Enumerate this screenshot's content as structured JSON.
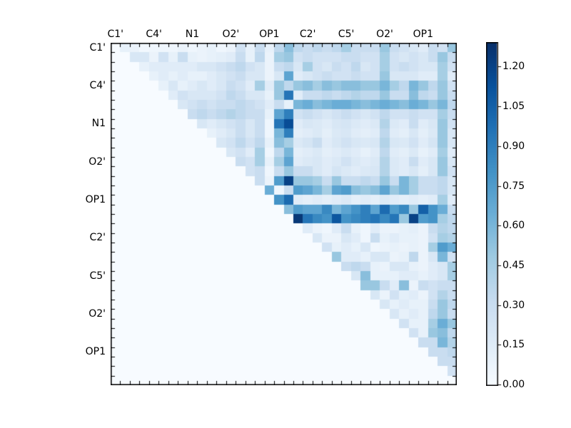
{
  "chart_data": {
    "type": "heatmap",
    "title": "",
    "x_tick_labels": [
      "C1'",
      "C4'",
      "N1",
      "O2'",
      "OP1",
      "C2'",
      "C5'",
      "O2'",
      "OP1"
    ],
    "y_tick_labels": [
      "C1'",
      "C4'",
      "N1",
      "O2'",
      "OP1",
      "C2'",
      "C5'",
      "O2'",
      "OP1"
    ],
    "label_every": 4,
    "grid_size": 36,
    "triangle": "upper",
    "vmin": 0.0,
    "vmax": 1.29,
    "colorbar_ticks": [
      "0.00",
      "0.15",
      "0.30",
      "0.45",
      "0.60",
      "0.75",
      "0.90",
      "1.05",
      "1.20"
    ],
    "colorbar_tick_values": [
      0.0,
      0.15,
      0.3,
      0.45,
      0.6,
      0.75,
      0.9,
      1.05,
      1.2
    ],
    "colormap": {
      "name": "Blues",
      "anchors": [
        "#f7fbff",
        "#deebf7",
        "#c6dbef",
        "#9ecae1",
        "#6baed6",
        "#4292c6",
        "#2171b5",
        "#08519c",
        "#08306b"
      ]
    },
    "frame_color": "#000000",
    "background_color": "#ffffff",
    "matrix": [
      [
        0,
        0.1,
        0.08,
        0.03,
        0.05,
        0.05,
        0.05,
        0.08,
        0.05,
        0.08,
        0.1,
        0.05,
        0.08,
        0.25,
        0.1,
        0.3,
        0.1,
        0.35,
        0.55,
        0.35,
        0.3,
        0.35,
        0.3,
        0.35,
        0.45,
        0.3,
        0.3,
        0.3,
        0.5,
        0.3,
        0.25,
        0.2,
        0.15,
        0.3,
        0.25,
        0.5
      ],
      [
        0,
        0,
        0.2,
        0.2,
        0.08,
        0.25,
        0.1,
        0.3,
        0.1,
        0.08,
        0.1,
        0.12,
        0.15,
        0.3,
        0.1,
        0.35,
        0.08,
        0.45,
        0.5,
        0.25,
        0.3,
        0.25,
        0.25,
        0.25,
        0.3,
        0.3,
        0.25,
        0.25,
        0.45,
        0.25,
        0.2,
        0.25,
        0.2,
        0.3,
        0.5,
        0.3
      ],
      [
        0,
        0,
        0,
        0.1,
        0.15,
        0.15,
        0.15,
        0.15,
        0.15,
        0.2,
        0.2,
        0.25,
        0.3,
        0.35,
        0.25,
        0.2,
        0.08,
        0.3,
        0.35,
        0.2,
        0.45,
        0.25,
        0.2,
        0.3,
        0.25,
        0.35,
        0.2,
        0.25,
        0.45,
        0.25,
        0.3,
        0.25,
        0.2,
        0.2,
        0.45,
        0.25
      ],
      [
        0,
        0,
        0,
        0,
        0.1,
        0.15,
        0.1,
        0.15,
        0.1,
        0.1,
        0.15,
        0.2,
        0.25,
        0.3,
        0.2,
        0.2,
        0.08,
        0.2,
        0.7,
        0.15,
        0.2,
        0.25,
        0.3,
        0.25,
        0.25,
        0.3,
        0.25,
        0.25,
        0.5,
        0.2,
        0.2,
        0.2,
        0.15,
        0.15,
        0.45,
        0.15
      ],
      [
        0,
        0,
        0,
        0,
        0,
        0.1,
        0.2,
        0.1,
        0.15,
        0.2,
        0.15,
        0.2,
        0.3,
        0.25,
        0.15,
        0.45,
        0.15,
        0.5,
        0.35,
        0.5,
        0.55,
        0.45,
        0.55,
        0.5,
        0.55,
        0.55,
        0.5,
        0.5,
        0.6,
        0.45,
        0.35,
        0.6,
        0.5,
        0.35,
        0.5,
        0.25
      ],
      [
        0,
        0,
        0,
        0,
        0,
        0,
        0.15,
        0.25,
        0.2,
        0.2,
        0.2,
        0.25,
        0.35,
        0.3,
        0.2,
        0.2,
        0.1,
        0.5,
        0.95,
        0.15,
        0.3,
        0.3,
        0.35,
        0.3,
        0.35,
        0.4,
        0.35,
        0.35,
        0.5,
        0.3,
        0.3,
        0.55,
        0.35,
        0.3,
        0.5,
        0.3
      ],
      [
        0,
        0,
        0,
        0,
        0,
        0,
        0,
        0.2,
        0.25,
        0.3,
        0.25,
        0.3,
        0.3,
        0.35,
        0.3,
        0.25,
        0.15,
        0.3,
        0.1,
        0.6,
        0.65,
        0.55,
        0.6,
        0.65,
        0.65,
        0.6,
        0.55,
        0.6,
        0.65,
        0.6,
        0.55,
        0.65,
        0.6,
        0.5,
        0.6,
        0.35
      ],
      [
        0,
        0,
        0,
        0,
        0,
        0,
        0,
        0,
        0.3,
        0.35,
        0.3,
        0.35,
        0.4,
        0.35,
        0.3,
        0.3,
        0.1,
        0.7,
        0.9,
        0.25,
        0.3,
        0.25,
        0.2,
        0.25,
        0.3,
        0.25,
        0.2,
        0.25,
        0.35,
        0.25,
        0.25,
        0.3,
        0.25,
        0.25,
        0.45,
        0.3
      ],
      [
        0,
        0,
        0,
        0,
        0,
        0,
        0,
        0,
        0,
        0.2,
        0.15,
        0.2,
        0.25,
        0.3,
        0.2,
        0.3,
        0.05,
        0.95,
        1.15,
        0.15,
        0.2,
        0.18,
        0.15,
        0.2,
        0.22,
        0.18,
        0.15,
        0.18,
        0.4,
        0.18,
        0.15,
        0.3,
        0.15,
        0.2,
        0.5,
        0.25
      ],
      [
        0,
        0,
        0,
        0,
        0,
        0,
        0,
        0,
        0,
        0,
        0.1,
        0.15,
        0.2,
        0.3,
        0.2,
        0.3,
        0.05,
        0.6,
        0.9,
        0.12,
        0.15,
        0.18,
        0.12,
        0.18,
        0.2,
        0.15,
        0.12,
        0.15,
        0.35,
        0.15,
        0.12,
        0.2,
        0.12,
        0.18,
        0.5,
        0.2
      ],
      [
        0,
        0,
        0,
        0,
        0,
        0,
        0,
        0,
        0,
        0,
        0,
        0.2,
        0.25,
        0.35,
        0.25,
        0.35,
        0.1,
        0.55,
        0.45,
        0.18,
        0.22,
        0.3,
        0.15,
        0.2,
        0.25,
        0.2,
        0.18,
        0.2,
        0.4,
        0.2,
        0.18,
        0.25,
        0.15,
        0.22,
        0.5,
        0.2
      ],
      [
        0,
        0,
        0,
        0,
        0,
        0,
        0,
        0,
        0,
        0,
        0,
        0,
        0.2,
        0.25,
        0.15,
        0.45,
        0.05,
        0.35,
        0.6,
        0.12,
        0.15,
        0.18,
        0.12,
        0.15,
        0.18,
        0.15,
        0.1,
        0.15,
        0.35,
        0.15,
        0.12,
        0.18,
        0.1,
        0.15,
        0.45,
        0.15
      ],
      [
        0,
        0,
        0,
        0,
        0,
        0,
        0,
        0,
        0,
        0,
        0,
        0,
        0,
        0.3,
        0.25,
        0.45,
        0.1,
        0.45,
        0.7,
        0.15,
        0.18,
        0.2,
        0.15,
        0.18,
        0.25,
        0.18,
        0.15,
        0.18,
        0.4,
        0.18,
        0.15,
        0.3,
        0.15,
        0.2,
        0.5,
        0.2
      ],
      [
        0,
        0,
        0,
        0,
        0,
        0,
        0,
        0,
        0,
        0,
        0,
        0,
        0,
        0,
        0.25,
        0.3,
        0.05,
        0.3,
        0.5,
        0.3,
        0.3,
        0.2,
        0.15,
        0.22,
        0.18,
        0.15,
        0.18,
        0.2,
        0.4,
        0.18,
        0.15,
        0.2,
        0.12,
        0.2,
        0.5,
        0.25
      ],
      [
        0,
        0,
        0,
        0,
        0,
        0,
        0,
        0,
        0,
        0,
        0,
        0,
        0,
        0,
        0,
        0.3,
        0.08,
        0.75,
        1.2,
        0.5,
        0.5,
        0.45,
        0.3,
        0.5,
        0.3,
        0.3,
        0.35,
        0.3,
        0.5,
        0.3,
        0.6,
        0.45,
        0.3,
        0.3,
        0.35,
        0.2
      ],
      [
        0,
        0,
        0,
        0,
        0,
        0,
        0,
        0,
        0,
        0,
        0,
        0,
        0,
        0,
        0,
        0,
        0.65,
        0.05,
        0.3,
        0.75,
        0.7,
        0.6,
        0.45,
        0.7,
        0.75,
        0.55,
        0.5,
        0.55,
        0.7,
        0.5,
        0.6,
        0.45,
        0.3,
        0.3,
        0.35,
        0.2
      ],
      [
        0,
        0,
        0,
        0,
        0,
        0,
        0,
        0,
        0,
        0,
        0,
        0,
        0,
        0,
        0,
        0,
        0,
        0.8,
        1.0,
        0.15,
        0.12,
        0.15,
        0.12,
        0.15,
        0.18,
        0.12,
        0.15,
        0.12,
        0.18,
        0.15,
        0.12,
        0.15,
        0.12,
        0.15,
        0.45,
        0.15
      ],
      [
        0,
        0,
        0,
        0,
        0,
        0,
        0,
        0,
        0,
        0,
        0,
        0,
        0,
        0,
        0,
        0,
        0,
        0,
        0.55,
        0.75,
        0.7,
        0.7,
        0.85,
        0.6,
        0.7,
        0.8,
        0.9,
        0.7,
        1.0,
        0.75,
        0.85,
        0.5,
        1.05,
        0.8,
        0.65,
        0.3
      ],
      [
        0,
        0,
        0,
        0,
        0,
        0,
        0,
        0,
        0,
        0,
        0,
        0,
        0,
        0,
        0,
        0,
        0,
        0,
        0,
        1.25,
        0.95,
        0.85,
        0.8,
        1.1,
        0.8,
        0.85,
        0.9,
        0.95,
        0.85,
        0.95,
        0.5,
        1.2,
        0.75,
        0.8,
        0.45,
        0.35
      ],
      [
        0,
        0,
        0,
        0,
        0,
        0,
        0,
        0,
        0,
        0,
        0,
        0,
        0,
        0,
        0,
        0,
        0,
        0,
        0,
        0,
        0.15,
        0.08,
        0.05,
        0.15,
        0.3,
        0.1,
        0.05,
        0.15,
        0.08,
        0.08,
        0.1,
        0.12,
        0.08,
        0.3,
        0.4,
        0.35
      ],
      [
        0,
        0,
        0,
        0,
        0,
        0,
        0,
        0,
        0,
        0,
        0,
        0,
        0,
        0,
        0,
        0,
        0,
        0,
        0,
        0,
        0,
        0.2,
        0.08,
        0.08,
        0.2,
        0.15,
        0.05,
        0.3,
        0.1,
        0.15,
        0.1,
        0.1,
        0.08,
        0.25,
        0.45,
        0.4
      ],
      [
        0,
        0,
        0,
        0,
        0,
        0,
        0,
        0,
        0,
        0,
        0,
        0,
        0,
        0,
        0,
        0,
        0,
        0,
        0,
        0,
        0,
        0,
        0.25,
        0.1,
        0.15,
        0.1,
        0.2,
        0.05,
        0.08,
        0.1,
        0.08,
        0.1,
        0.08,
        0.45,
        0.75,
        0.65
      ],
      [
        0,
        0,
        0,
        0,
        0,
        0,
        0,
        0,
        0,
        0,
        0,
        0,
        0,
        0,
        0,
        0,
        0,
        0,
        0,
        0,
        0,
        0,
        0,
        0.5,
        0.15,
        0.15,
        0.1,
        0.2,
        0.2,
        0.08,
        0.1,
        0.35,
        0.08,
        0.2,
        0.6,
        0.25
      ],
      [
        0,
        0,
        0,
        0,
        0,
        0,
        0,
        0,
        0,
        0,
        0,
        0,
        0,
        0,
        0,
        0,
        0,
        0,
        0,
        0,
        0,
        0,
        0,
        0,
        0.3,
        0.35,
        0.3,
        0.1,
        0.08,
        0.2,
        0.2,
        0.1,
        0.08,
        0.15,
        0.2,
        0.45
      ],
      [
        0,
        0,
        0,
        0,
        0,
        0,
        0,
        0,
        0,
        0,
        0,
        0,
        0,
        0,
        0,
        0,
        0,
        0,
        0,
        0,
        0,
        0,
        0,
        0,
        0,
        0.2,
        0.55,
        0.1,
        0.1,
        0.1,
        0.15,
        0.15,
        0.1,
        0.15,
        0.2,
        0.45
      ],
      [
        0,
        0,
        0,
        0,
        0,
        0,
        0,
        0,
        0,
        0,
        0,
        0,
        0,
        0,
        0,
        0,
        0,
        0,
        0,
        0,
        0,
        0,
        0,
        0,
        0,
        0,
        0.5,
        0.5,
        0.3,
        0.15,
        0.55,
        0.08,
        0.3,
        0.25,
        0.3,
        0.3
      ],
      [
        0,
        0,
        0,
        0,
        0,
        0,
        0,
        0,
        0,
        0,
        0,
        0,
        0,
        0,
        0,
        0,
        0,
        0,
        0,
        0,
        0,
        0,
        0,
        0,
        0,
        0,
        0,
        0.2,
        0.08,
        0.25,
        0.12,
        0.15,
        0.08,
        0.25,
        0.4,
        0.3
      ],
      [
        0,
        0,
        0,
        0,
        0,
        0,
        0,
        0,
        0,
        0,
        0,
        0,
        0,
        0,
        0,
        0,
        0,
        0,
        0,
        0,
        0,
        0,
        0,
        0,
        0,
        0,
        0,
        0,
        0.2,
        0.1,
        0.15,
        0.1,
        0.1,
        0.3,
        0.5,
        0.35
      ],
      [
        0,
        0,
        0,
        0,
        0,
        0,
        0,
        0,
        0,
        0,
        0,
        0,
        0,
        0,
        0,
        0,
        0,
        0,
        0,
        0,
        0,
        0,
        0,
        0,
        0,
        0,
        0,
        0,
        0,
        0.2,
        0.1,
        0.15,
        0.1,
        0.35,
        0.5,
        0.3
      ],
      [
        0,
        0,
        0,
        0,
        0,
        0,
        0,
        0,
        0,
        0,
        0,
        0,
        0,
        0,
        0,
        0,
        0,
        0,
        0,
        0,
        0,
        0,
        0,
        0,
        0,
        0,
        0,
        0,
        0,
        0,
        0.25,
        0.1,
        0.1,
        0.45,
        0.65,
        0.5
      ],
      [
        0,
        0,
        0,
        0,
        0,
        0,
        0,
        0,
        0,
        0,
        0,
        0,
        0,
        0,
        0,
        0,
        0,
        0,
        0,
        0,
        0,
        0,
        0,
        0,
        0,
        0,
        0,
        0,
        0,
        0,
        0,
        0.25,
        0.1,
        0.5,
        0.55,
        0.35
      ],
      [
        0,
        0,
        0,
        0,
        0,
        0,
        0,
        0,
        0,
        0,
        0,
        0,
        0,
        0,
        0,
        0,
        0,
        0,
        0,
        0,
        0,
        0,
        0,
        0,
        0,
        0,
        0,
        0,
        0,
        0,
        0,
        0,
        0.3,
        0.3,
        0.6,
        0.4
      ],
      [
        0,
        0,
        0,
        0,
        0,
        0,
        0,
        0,
        0,
        0,
        0,
        0,
        0,
        0,
        0,
        0,
        0,
        0,
        0,
        0,
        0,
        0,
        0,
        0,
        0,
        0,
        0,
        0,
        0,
        0,
        0,
        0,
        0,
        0.3,
        0.3,
        0.35
      ],
      [
        0,
        0,
        0,
        0,
        0,
        0,
        0,
        0,
        0,
        0,
        0,
        0,
        0,
        0,
        0,
        0,
        0,
        0,
        0,
        0,
        0,
        0,
        0,
        0,
        0,
        0,
        0,
        0,
        0,
        0,
        0,
        0,
        0,
        0,
        0.3,
        0.3
      ],
      [
        0,
        0,
        0,
        0,
        0,
        0,
        0,
        0,
        0,
        0,
        0,
        0,
        0,
        0,
        0,
        0,
        0,
        0,
        0,
        0,
        0,
        0,
        0,
        0,
        0,
        0,
        0,
        0,
        0,
        0,
        0,
        0,
        0,
        0,
        0,
        0.25
      ],
      [
        0,
        0,
        0,
        0,
        0,
        0,
        0,
        0,
        0,
        0,
        0,
        0,
        0,
        0,
        0,
        0,
        0,
        0,
        0,
        0,
        0,
        0,
        0,
        0,
        0,
        0,
        0,
        0,
        0,
        0,
        0,
        0,
        0,
        0,
        0,
        0
      ]
    ]
  }
}
